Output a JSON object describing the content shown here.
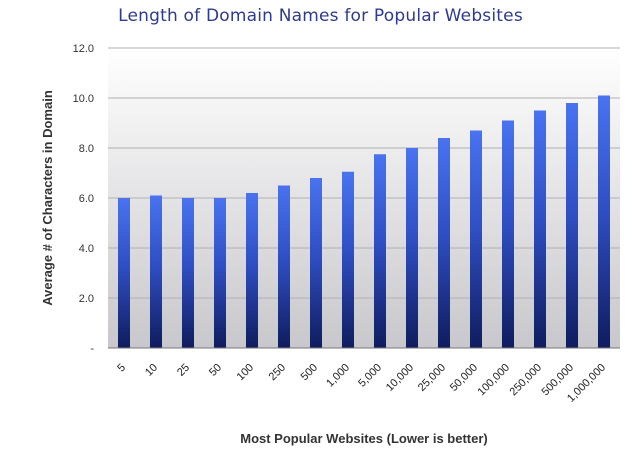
{
  "chart_data": {
    "type": "bar",
    "title": "Length of Domain Names for Popular Websites",
    "xlabel": "Most Popular Websites (Lower is better)",
    "ylabel": "Average # of Characters in Domain",
    "categories": [
      "5",
      "10",
      "25",
      "50",
      "100",
      "250",
      "500",
      "1,000",
      "5,000",
      "10,000",
      "25,000",
      "50,000",
      "100,000",
      "250,000",
      "500,000",
      "1,000,000"
    ],
    "values": [
      6.0,
      6.1,
      6.0,
      6.0,
      6.2,
      6.5,
      6.8,
      7.05,
      7.75,
      8.0,
      8.4,
      8.7,
      9.1,
      9.5,
      9.8,
      10.1
    ],
    "ylim": [
      0,
      12
    ],
    "yticks": [
      {
        "value": 0,
        "label": "-"
      },
      {
        "value": 2,
        "label": "2.0"
      },
      {
        "value": 4,
        "label": "4.0"
      },
      {
        "value": 6,
        "label": "6.0"
      },
      {
        "value": 8,
        "label": "8.0"
      },
      {
        "value": 10,
        "label": "10.0"
      },
      {
        "value": 12,
        "label": "12.0"
      }
    ],
    "grid": true,
    "colors": {
      "bar_top": "#4a73f0",
      "bar_bottom": "#0f1c5e",
      "title": "#2e3a8c",
      "grid": "#b0b0b0"
    }
  }
}
